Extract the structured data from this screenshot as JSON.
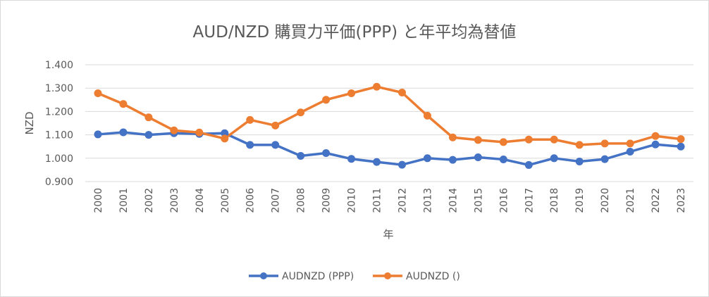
{
  "chart_data": {
    "type": "line",
    "title": "AUD/NZD 購買力平価(PPP) と年平均為替値",
    "xlabel": "年",
    "ylabel": "NZD",
    "ylim": [
      0.9,
      1.4
    ],
    "y_ticks": [
      "0.900",
      "1.000",
      "1.100",
      "1.200",
      "1.300",
      "1.400"
    ],
    "grid": true,
    "legend_position": "bottom",
    "categories": [
      "2000",
      "2001",
      "2002",
      "2003",
      "2004",
      "2005",
      "2006",
      "2007",
      "2008",
      "2009",
      "2010",
      "2011",
      "2012",
      "2013",
      "2014",
      "2015",
      "2016",
      "2017",
      "2018",
      "2019",
      "2020",
      "2021",
      "2022",
      "2023"
    ],
    "series": [
      {
        "name": "AUDNZD (PPP)",
        "color": "#4472c4",
        "values": [
          1.102,
          1.111,
          1.1,
          1.107,
          1.104,
          1.107,
          1.057,
          1.057,
          1.01,
          1.022,
          0.997,
          0.984,
          0.972,
          1.0,
          0.993,
          1.004,
          0.995,
          0.971,
          1.0,
          0.986,
          0.996,
          1.028,
          1.059,
          1.05
        ]
      },
      {
        "name": "AUDNZD ()",
        "color": "#ed7d31",
        "values": [
          1.278,
          1.232,
          1.175,
          1.119,
          1.11,
          1.084,
          1.164,
          1.14,
          1.196,
          1.25,
          1.278,
          1.306,
          1.281,
          1.182,
          1.089,
          1.078,
          1.069,
          1.08,
          1.08,
          1.057,
          1.063,
          1.063,
          1.095,
          1.082
        ]
      }
    ]
  }
}
